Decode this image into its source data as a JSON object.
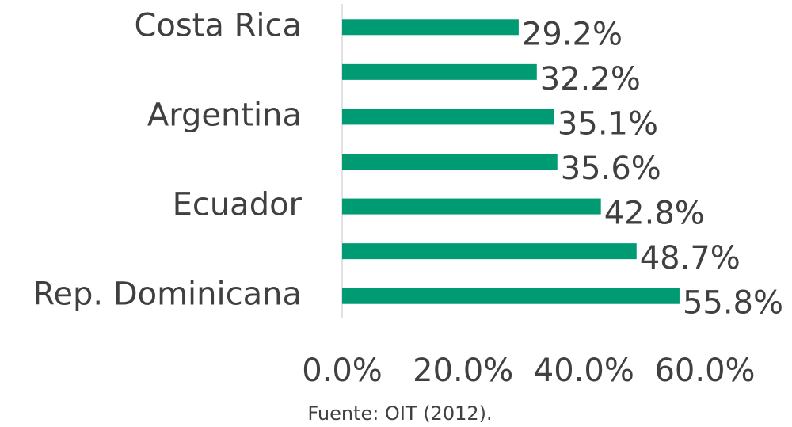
{
  "chart_data": {
    "type": "bar",
    "orientation": "horizontal",
    "categories": [
      "Costa Rica",
      null,
      "Argentina",
      null,
      "Ecuador",
      null,
      "Rep. Dominicana"
    ],
    "values": [
      29.2,
      32.2,
      35.1,
      35.6,
      42.8,
      48.7,
      55.8
    ],
    "value_labels": [
      "29.2%",
      "32.2%",
      "35.1%",
      "35.6%",
      "42.8%",
      "48.7%",
      "55.8%"
    ],
    "color": "#009b72",
    "xlim": [
      0,
      60
    ],
    "xticks": [
      {
        "value": 0,
        "label": "0.0%"
      },
      {
        "value": 20,
        "label": "20.0%"
      },
      {
        "value": 40,
        "label": "40.0%"
      },
      {
        "value": 60,
        "label": "60.0%"
      }
    ],
    "grid": false,
    "source": "Fuente: OIT (2012)."
  }
}
